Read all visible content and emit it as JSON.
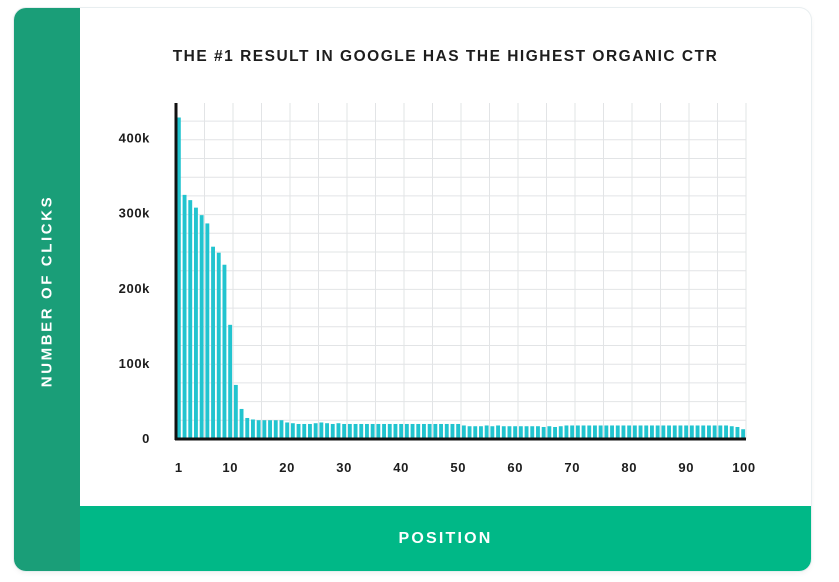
{
  "chart_data": {
    "type": "bar",
    "title": "THE #1 RESULT IN GOOGLE HAS THE HIGHEST ORGANIC CTR",
    "xlabel": "POSITION",
    "ylabel": "NUMBER OF CLICKS",
    "ylim": [
      0,
      440000
    ],
    "xlim": [
      1,
      100
    ],
    "grid": true,
    "colors": {
      "bar": "#22c4cf",
      "axis": "#111111",
      "grid": "#e2e4e6",
      "side_band": "#1a9e78",
      "bottom_band": "#00b887"
    },
    "y_ticks": [
      {
        "value": 0,
        "label": "0"
      },
      {
        "value": 100000,
        "label": "100k"
      },
      {
        "value": 200000,
        "label": "200k"
      },
      {
        "value": 300000,
        "label": "300k"
      },
      {
        "value": 400000,
        "label": "400k"
      }
    ],
    "x_ticks": [
      {
        "value": 1,
        "label": "1"
      },
      {
        "value": 10,
        "label": "10"
      },
      {
        "value": 20,
        "label": "20"
      },
      {
        "value": 30,
        "label": "30"
      },
      {
        "value": 40,
        "label": "40"
      },
      {
        "value": 50,
        "label": "50"
      },
      {
        "value": 60,
        "label": "60"
      },
      {
        "value": 70,
        "label": "70"
      },
      {
        "value": 80,
        "label": "80"
      },
      {
        "value": 90,
        "label": "90"
      },
      {
        "value": 100,
        "label": "100"
      }
    ],
    "categories": [
      1,
      2,
      3,
      4,
      5,
      6,
      7,
      8,
      9,
      10,
      11,
      12,
      13,
      14,
      15,
      16,
      17,
      18,
      19,
      20,
      21,
      22,
      23,
      24,
      25,
      26,
      27,
      28,
      29,
      30,
      31,
      32,
      33,
      34,
      35,
      36,
      37,
      38,
      39,
      40,
      41,
      42,
      43,
      44,
      45,
      46,
      47,
      48,
      49,
      50,
      51,
      52,
      53,
      54,
      55,
      56,
      57,
      58,
      59,
      60,
      61,
      62,
      63,
      64,
      65,
      66,
      67,
      68,
      69,
      70,
      71,
      72,
      73,
      74,
      75,
      76,
      77,
      78,
      79,
      80,
      81,
      82,
      83,
      84,
      85,
      86,
      87,
      88,
      89,
      90,
      91,
      92,
      93,
      94,
      95,
      96,
      97,
      98,
      99,
      100
    ],
    "values": [
      428000,
      325000,
      318000,
      308000,
      298000,
      287000,
      256000,
      248000,
      232000,
      152000,
      72000,
      40000,
      28000,
      26000,
      25000,
      25000,
      25000,
      25000,
      25000,
      22000,
      21000,
      20000,
      20000,
      20000,
      21000,
      22000,
      21000,
      20000,
      21000,
      20000,
      20000,
      20000,
      20000,
      20000,
      20000,
      20000,
      20000,
      20000,
      20000,
      20000,
      20000,
      20000,
      20000,
      20000,
      20000,
      20000,
      20000,
      20000,
      20000,
      20000,
      18000,
      17000,
      17000,
      17000,
      18000,
      17000,
      18000,
      17000,
      17000,
      17000,
      17000,
      17000,
      17000,
      17000,
      16000,
      17000,
      16000,
      17000,
      18000,
      18000,
      18000,
      18000,
      18000,
      18000,
      18000,
      18000,
      18000,
      18000,
      18000,
      18000,
      18000,
      18000,
      18000,
      18000,
      18000,
      18000,
      18000,
      18000,
      18000,
      18000,
      18000,
      18000,
      18000,
      18000,
      18000,
      18000,
      18000,
      17000,
      16000,
      13000
    ]
  }
}
